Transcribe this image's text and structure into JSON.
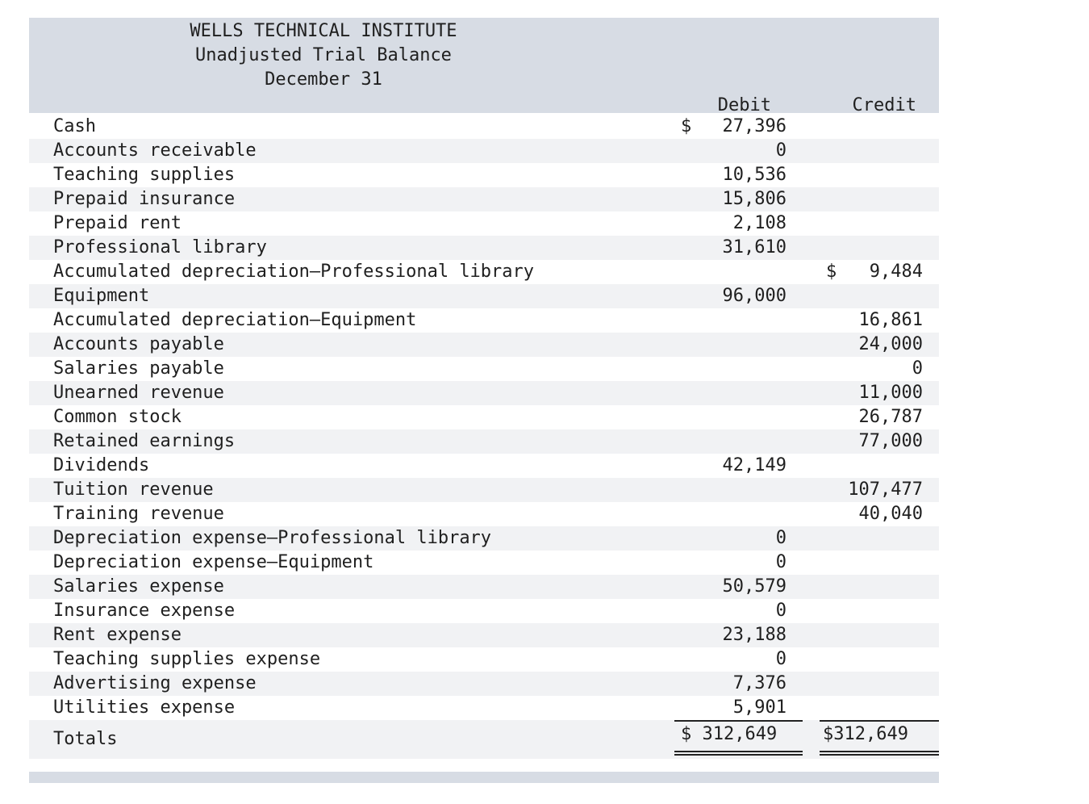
{
  "header": {
    "company": "WELLS TECHNICAL INSTITUTE",
    "report": "Unadjusted Trial Balance",
    "date": "December 31",
    "debit_label": "Debit",
    "credit_label": "Credit"
  },
  "rows": [
    {
      "account": "Cash",
      "debit_sign": "$",
      "debit": "27,396",
      "credit_sign": "",
      "credit": ""
    },
    {
      "account": "Accounts receivable",
      "debit_sign": "",
      "debit": "0",
      "credit_sign": "",
      "credit": ""
    },
    {
      "account": "Teaching supplies",
      "debit_sign": "",
      "debit": "10,536",
      "credit_sign": "",
      "credit": ""
    },
    {
      "account": "Prepaid insurance",
      "debit_sign": "",
      "debit": "15,806",
      "credit_sign": "",
      "credit": ""
    },
    {
      "account": "Prepaid rent",
      "debit_sign": "",
      "debit": "2,108",
      "credit_sign": "",
      "credit": ""
    },
    {
      "account": "Professional library",
      "debit_sign": "",
      "debit": "31,610",
      "credit_sign": "",
      "credit": ""
    },
    {
      "account": "Accumulated depreciation—Professional library",
      "debit_sign": "",
      "debit": "",
      "credit_sign": "$",
      "credit": "9,484"
    },
    {
      "account": "Equipment",
      "debit_sign": "",
      "debit": "96,000",
      "credit_sign": "",
      "credit": ""
    },
    {
      "account": "Accumulated depreciation—Equipment",
      "debit_sign": "",
      "debit": "",
      "credit_sign": "",
      "credit": "16,861"
    },
    {
      "account": "Accounts payable",
      "debit_sign": "",
      "debit": "",
      "credit_sign": "",
      "credit": "24,000"
    },
    {
      "account": "Salaries payable",
      "debit_sign": "",
      "debit": "",
      "credit_sign": "",
      "credit": "0"
    },
    {
      "account": "Unearned revenue",
      "debit_sign": "",
      "debit": "",
      "credit_sign": "",
      "credit": "11,000"
    },
    {
      "account": "Common stock",
      "debit_sign": "",
      "debit": "",
      "credit_sign": "",
      "credit": "26,787"
    },
    {
      "account": "Retained earnings",
      "debit_sign": "",
      "debit": "",
      "credit_sign": "",
      "credit": "77,000"
    },
    {
      "account": "Dividends",
      "debit_sign": "",
      "debit": "42,149",
      "credit_sign": "",
      "credit": ""
    },
    {
      "account": "Tuition revenue",
      "debit_sign": "",
      "debit": "",
      "credit_sign": "",
      "credit": "107,477"
    },
    {
      "account": "Training revenue",
      "debit_sign": "",
      "debit": "",
      "credit_sign": "",
      "credit": "40,040"
    },
    {
      "account": "Depreciation expense—Professional library",
      "debit_sign": "",
      "debit": "0",
      "credit_sign": "",
      "credit": ""
    },
    {
      "account": "Depreciation expense—Equipment",
      "debit_sign": "",
      "debit": "0",
      "credit_sign": "",
      "credit": ""
    },
    {
      "account": "Salaries expense",
      "debit_sign": "",
      "debit": "50,579",
      "credit_sign": "",
      "credit": ""
    },
    {
      "account": "Insurance expense",
      "debit_sign": "",
      "debit": "0",
      "credit_sign": "",
      "credit": ""
    },
    {
      "account": "Rent expense",
      "debit_sign": "",
      "debit": "23,188",
      "credit_sign": "",
      "credit": ""
    },
    {
      "account": "Teaching supplies expense",
      "debit_sign": "",
      "debit": "0",
      "credit_sign": "",
      "credit": ""
    },
    {
      "account": "Advertising expense",
      "debit_sign": "",
      "debit": "7,376",
      "credit_sign": "",
      "credit": ""
    },
    {
      "account": "Utilities expense",
      "debit_sign": "",
      "debit": "5,901",
      "credit_sign": "",
      "credit": ""
    }
  ],
  "totals": {
    "label": "Totals",
    "debit": "$ 312,649",
    "credit": "$312,649"
  },
  "colors": {
    "header_band": "#d7dce4",
    "row_shade": "#f1f2f4"
  }
}
